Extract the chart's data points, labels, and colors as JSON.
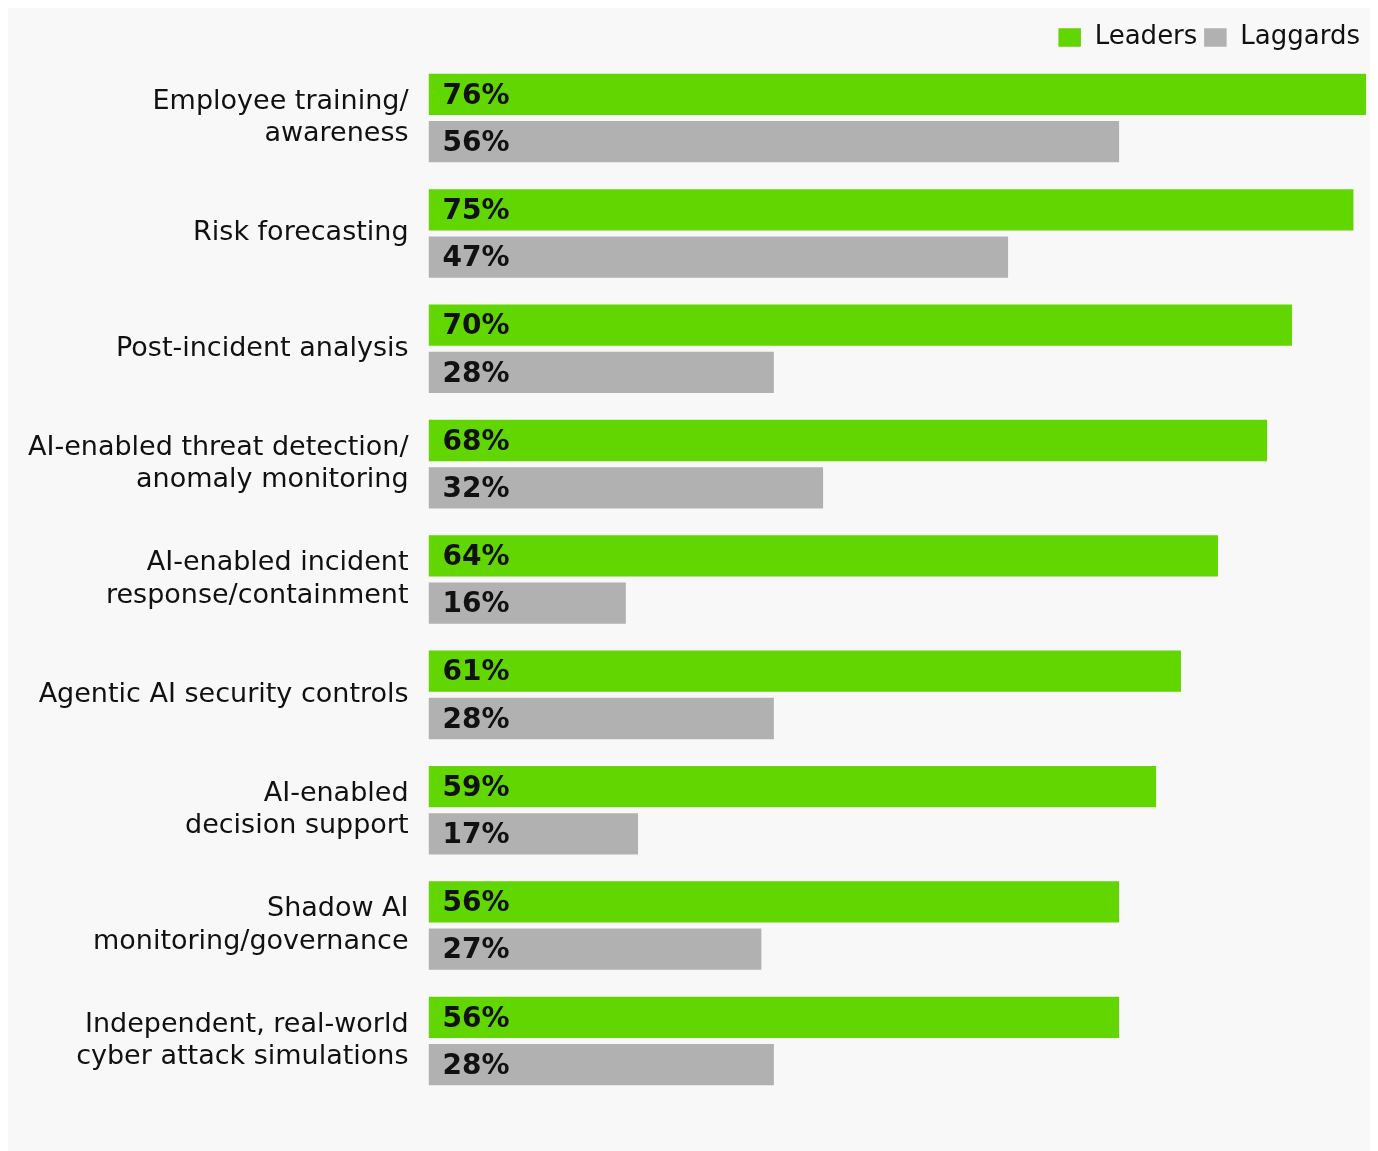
{
  "chart_data": {
    "type": "bar",
    "orientation": "horizontal",
    "relative": false,
    "categories": [
      "Employee training/\nawareness",
      "Risk forecasting",
      "Post-incident analysis",
      "AI-enabled threat detection/\nanomaly monitoring",
      "AI-enabled incident\nresponse/containment",
      "Agentic AI security controls",
      "AI-enabled\ndecision support",
      "Shadow AI\nmonitoring/governance",
      "Independent, real-world\ncyber attack simulations"
    ],
    "series": [
      {
        "name": "Leaders",
        "color": "#62d600",
        "values": [
          76,
          75,
          70,
          68,
          64,
          61,
          59,
          56,
          56
        ],
        "value_labels": [
          "76%",
          "75%",
          "70%",
          "68%",
          "64%",
          "61%",
          "59%",
          "56%",
          "56%"
        ]
      },
      {
        "name": "Laggards",
        "color": "#b2b1b1",
        "values": [
          56,
          47,
          28,
          32,
          16,
          28,
          17,
          27,
          28
        ],
        "value_labels": [
          "56%",
          "47%",
          "28%",
          "32%",
          "16%",
          "28%",
          "17%",
          "27%",
          "28%"
        ]
      }
    ],
    "xlim": [
      0,
      76
    ],
    "legend": "top right",
    "grid": false,
    "tick_labels": "y"
  }
}
